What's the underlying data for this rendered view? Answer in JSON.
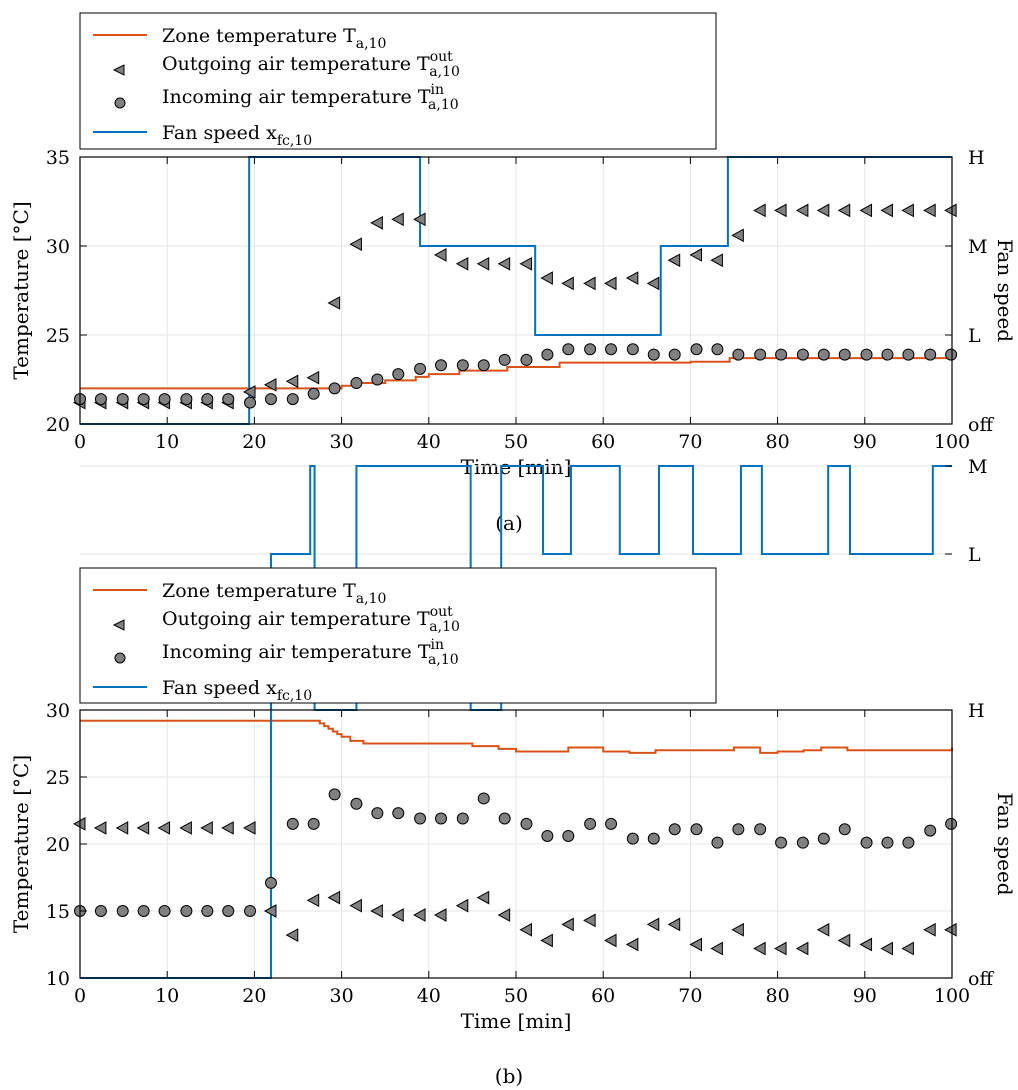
{
  "colors": {
    "zone": "#d95319",
    "fan": "#0072bd",
    "marker_fill": "#808080",
    "marker_edge": "#000000",
    "grid": "#e6e6e6"
  },
  "chart_data": [
    {
      "type": "line",
      "caption": "(a)",
      "xlabel": "Time [min]",
      "ylabel": "Temperature [°C]",
      "y2label": "Fan speed",
      "xlim": [
        0,
        100
      ],
      "ylim": [
        20,
        35
      ],
      "xticks": [
        0,
        10,
        20,
        30,
        40,
        50,
        60,
        70,
        80,
        90,
        100
      ],
      "yticks": [
        20,
        25,
        30,
        35
      ],
      "y2ticks": [
        "off",
        "L",
        "M",
        "H"
      ],
      "grid": true,
      "legend_position": "above",
      "legend": {
        "zone": "Zone temperature T",
        "zone_sub": "a,10",
        "out": "Outgoing air temperature T",
        "out_sub": "a,10",
        "out_sup": "out",
        "in": "Incoming air temperature T",
        "in_sub": "a,10",
        "in_sup": "in",
        "fan": "Fan speed x",
        "fan_sub": "fc,10"
      },
      "series": [
        {
          "name": "Zone temperature",
          "kind": "step",
          "x": [
            0,
            30,
            31.5,
            35,
            38.5,
            40,
            43.5,
            49,
            55,
            70,
            74.5,
            100
          ],
          "y": [
            22.0,
            22.15,
            22.3,
            22.45,
            22.65,
            22.8,
            23.0,
            23.2,
            23.45,
            23.5,
            23.7,
            23.7
          ]
        },
        {
          "name": "Fan speed",
          "kind": "step",
          "x": [
            0,
            19.4,
            39,
            52.2,
            66.6,
            74.3,
            100
          ],
          "y": [
            "off",
            "H",
            "M",
            "L",
            "M",
            "H",
            "H"
          ]
        },
        {
          "name": "Outgoing air temperature",
          "kind": "marker-triangle",
          "x": [
            0,
            2.4,
            4.9,
            7.3,
            9.7,
            12.2,
            14.6,
            17.0,
            19.5,
            21.9,
            24.4,
            26.8,
            29.2,
            31.7,
            34.1,
            36.5,
            39.0,
            41.4,
            43.9,
            46.3,
            48.7,
            51.2,
            53.6,
            56.0,
            58.5,
            60.9,
            63.4,
            65.8,
            68.2,
            70.7,
            73.1,
            75.5,
            78.0,
            80.4,
            82.9,
            85.3,
            87.7,
            90.2,
            92.6,
            95.0,
            97.5,
            99.9
          ],
          "y": [
            21.2,
            21.2,
            21.2,
            21.2,
            21.2,
            21.2,
            21.2,
            21.2,
            21.8,
            22.2,
            22.4,
            22.6,
            26.8,
            30.1,
            31.3,
            31.5,
            31.5,
            29.5,
            29.0,
            29.0,
            29.0,
            29.0,
            28.2,
            27.9,
            27.9,
            27.9,
            28.2,
            27.9,
            29.2,
            29.5,
            29.2,
            30.6,
            32.0,
            32.0,
            32.0,
            32.0,
            32.0,
            32.0,
            32.0,
            32.0,
            32.0,
            32.0
          ]
        },
        {
          "name": "Incoming air temperature",
          "kind": "marker-circle",
          "x": [
            0,
            2.4,
            4.9,
            7.3,
            9.7,
            12.2,
            14.6,
            17.0,
            19.5,
            21.9,
            24.4,
            26.8,
            29.2,
            31.7,
            34.1,
            36.5,
            39.0,
            41.4,
            43.9,
            46.3,
            48.7,
            51.2,
            53.6,
            56.0,
            58.5,
            60.9,
            63.4,
            65.8,
            68.2,
            70.7,
            73.1,
            75.5,
            78.0,
            80.4,
            82.9,
            85.3,
            87.7,
            90.2,
            92.6,
            95.0,
            97.5,
            99.9
          ],
          "y": [
            21.4,
            21.4,
            21.4,
            21.4,
            21.4,
            21.4,
            21.4,
            21.4,
            21.2,
            21.4,
            21.4,
            21.7,
            22.0,
            22.3,
            22.5,
            22.8,
            23.1,
            23.3,
            23.3,
            23.3,
            23.6,
            23.6,
            23.9,
            24.2,
            24.2,
            24.2,
            24.2,
            23.9,
            23.9,
            24.2,
            24.2,
            23.9,
            23.9,
            23.9,
            23.9,
            23.9,
            23.9,
            23.9,
            23.9,
            23.9,
            23.9,
            23.9
          ]
        }
      ]
    },
    {
      "type": "line",
      "caption": "(b)",
      "xlabel": "Time [min]",
      "ylabel": "Temperature [°C]",
      "y2label": "Fan speed",
      "xlim": [
        0,
        100
      ],
      "ylim": [
        10,
        30
      ],
      "xticks": [
        0,
        10,
        20,
        30,
        40,
        50,
        60,
        70,
        80,
        90,
        100
      ],
      "yticks": [
        10,
        15,
        20,
        25,
        30
      ],
      "y2ticks": [
        "off",
        "L",
        "M",
        "H"
      ],
      "grid": true,
      "legend_position": "above",
      "legend": {
        "zone": "Zone temperature T",
        "zone_sub": "a,10",
        "out": "Outgoing air temperature T",
        "out_sub": "a,10",
        "out_sup": "out",
        "in": "Incoming air temperature T",
        "in_sub": "a,10",
        "in_sup": "in",
        "fan": "Fan speed x",
        "fan_sub": "fc,10"
      },
      "series": [
        {
          "name": "Zone temperature",
          "kind": "step",
          "x": [
            0,
            26.5,
            27.5,
            28.0,
            28.5,
            29.0,
            29.5,
            30.0,
            31.0,
            32.5,
            45,
            48,
            50,
            53,
            56,
            60,
            63,
            66,
            75,
            78,
            80,
            83,
            85,
            88,
            100
          ],
          "y": [
            29.2,
            29.2,
            29.0,
            28.8,
            28.6,
            28.4,
            28.2,
            28.0,
            27.7,
            27.5,
            27.3,
            27.1,
            26.9,
            26.9,
            27.2,
            26.9,
            26.8,
            27.0,
            27.2,
            26.8,
            26.9,
            27.0,
            27.2,
            27.0,
            27.2
          ]
        },
        {
          "name": "Fan speed",
          "kind": "step",
          "x": [
            0,
            21.9,
            26.4,
            26.9,
            31.7,
            44.8,
            48.3,
            53.1,
            56.3,
            61.9,
            66.4,
            70.3,
            75.8,
            78.2,
            85.8,
            88.3,
            97.8,
            100
          ],
          "y": [
            "off",
            "L",
            "M",
            "H",
            "M",
            "H",
            "M",
            "L",
            "M",
            "L",
            "M",
            "L",
            "M",
            "L",
            "M",
            "L",
            "M",
            "M"
          ]
        },
        {
          "name": "Outgoing air temperature",
          "kind": "marker-triangle",
          "x": [
            0,
            2.4,
            4.9,
            7.3,
            9.7,
            12.2,
            14.6,
            17.0,
            19.5,
            21.9,
            24.4,
            26.8,
            29.2,
            31.7,
            34.1,
            36.5,
            39.0,
            41.4,
            43.9,
            46.3,
            48.7,
            51.2,
            53.6,
            56.0,
            58.5,
            60.9,
            63.4,
            65.8,
            68.2,
            70.7,
            73.1,
            75.5,
            78.0,
            80.4,
            82.9,
            85.3,
            87.7,
            90.2,
            92.6,
            95.0,
            97.5,
            99.9
          ],
          "y": [
            21.5,
            21.2,
            21.2,
            21.2,
            21.2,
            21.2,
            21.2,
            21.2,
            21.2,
            15.0,
            13.2,
            15.8,
            16.0,
            15.4,
            15.0,
            14.7,
            14.7,
            14.7,
            15.4,
            16.0,
            14.7,
            13.6,
            12.8,
            14.0,
            14.3,
            12.8,
            12.5,
            14.0,
            14.0,
            12.5,
            12.2,
            13.6,
            12.2,
            12.2,
            12.2,
            13.6,
            12.8,
            12.5,
            12.2,
            12.2,
            13.6,
            13.6
          ]
        },
        {
          "name": "Incoming air temperature",
          "kind": "marker-circle",
          "x": [
            0,
            2.4,
            4.9,
            7.3,
            9.7,
            12.2,
            14.6,
            17.0,
            19.5,
            21.9,
            24.4,
            26.8,
            29.2,
            31.7,
            34.1,
            36.5,
            39.0,
            41.4,
            43.9,
            46.3,
            48.7,
            51.2,
            53.6,
            56.0,
            58.5,
            60.9,
            63.4,
            65.8,
            68.2,
            70.7,
            73.1,
            75.5,
            78.0,
            80.4,
            82.9,
            85.3,
            87.7,
            90.2,
            92.6,
            95.0,
            97.5,
            99.9
          ],
          "y": [
            15.0,
            15.0,
            15.0,
            15.0,
            15.0,
            15.0,
            15.0,
            15.0,
            15.0,
            17.1,
            21.5,
            21.5,
            23.7,
            23.0,
            22.3,
            22.3,
            21.9,
            21.9,
            21.9,
            23.4,
            21.9,
            21.5,
            20.6,
            20.6,
            21.5,
            21.5,
            20.4,
            20.4,
            21.1,
            21.1,
            20.1,
            21.1,
            21.1,
            20.1,
            20.1,
            20.4,
            21.1,
            20.1,
            20.1,
            20.1,
            21.0,
            21.5
          ]
        }
      ]
    }
  ]
}
